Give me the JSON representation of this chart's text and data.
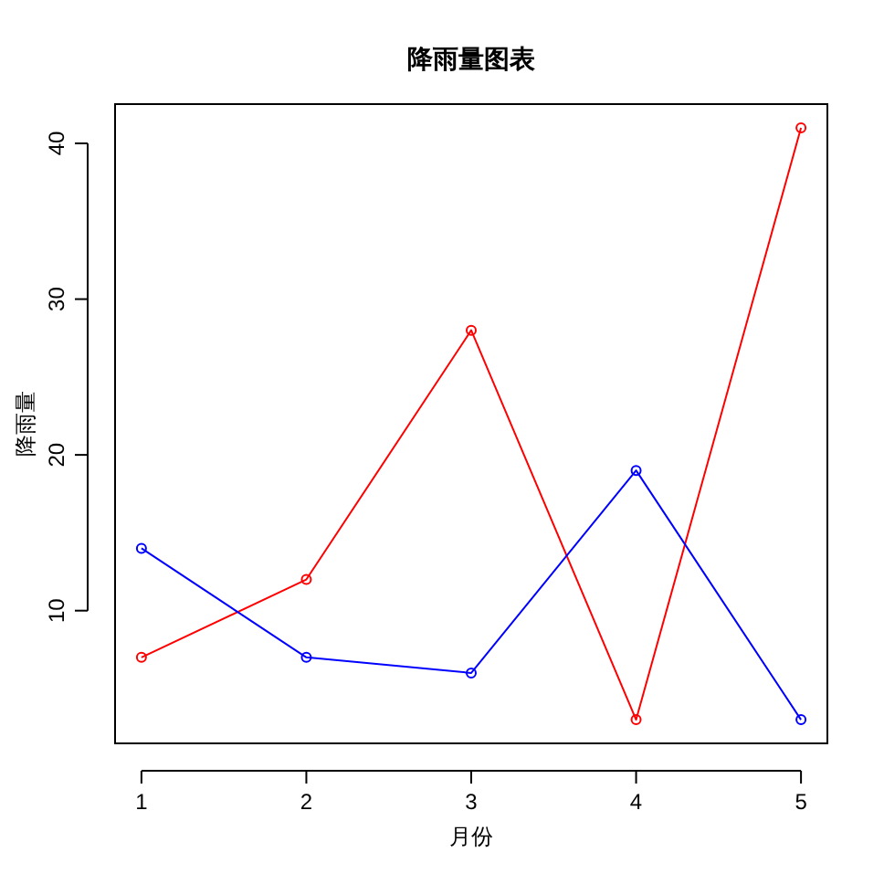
{
  "chart_data": {
    "type": "line",
    "title": "降雨量图表",
    "xlabel": "月份",
    "ylabel": "降雨量",
    "x": [
      1,
      2,
      3,
      4,
      5
    ],
    "series": [
      {
        "color": "#ff0000",
        "values": [
          7,
          12,
          28,
          3,
          41
        ]
      },
      {
        "color": "#0000ff",
        "values": [
          14,
          7,
          6,
          19,
          3
        ]
      }
    ],
    "xlim": [
      0.84,
      5.16
    ],
    "ylim": [
      1.48,
      42.52
    ],
    "xticks": [
      1,
      2,
      3,
      4,
      5
    ],
    "yticks": [
      10,
      20,
      30,
      40
    ],
    "marker": "circle",
    "line_style": "solid"
  }
}
